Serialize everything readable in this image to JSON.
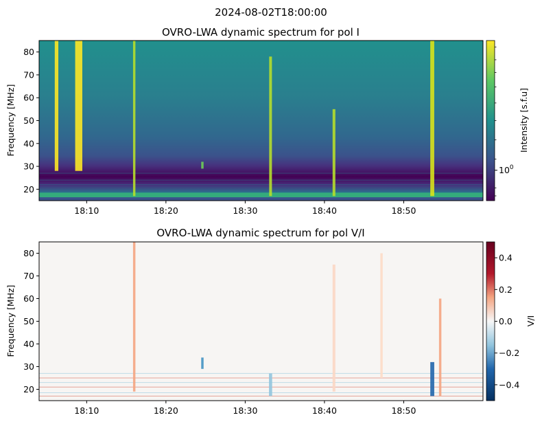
{
  "figure": {
    "suptitle": "2024-08-02T18:00:00"
  },
  "chart_data": [
    {
      "type": "heatmap",
      "title": "OVRO-LWA dynamic spectrum for pol I",
      "xlabel": "",
      "ylabel": "Frequency [MHz]",
      "xlim_minutes": [
        4,
        60
      ],
      "ylim": [
        15,
        85
      ],
      "x_tick_labels": [
        "18:10",
        "18:20",
        "18:30",
        "18:40",
        "18:50"
      ],
      "x_tick_minutes": [
        10,
        20,
        30,
        40,
        50
      ],
      "y_ticks": [
        20,
        30,
        40,
        50,
        60,
        70,
        80
      ],
      "colormap": "viridis",
      "colorbar_label": "Intensity [s.f.u]",
      "colorbar_scale": "log",
      "colorbar_tick_labels": [
        "10^0"
      ],
      "background_band_colors": {
        "high_freq": "#21908d",
        "mid_freq": "#2c728e",
        "low_band": "#40105c",
        "bottom": "#3b528b"
      },
      "bursts": [
        {
          "minute": 6.2,
          "fmin": 28,
          "fmax": 85,
          "width": 0.45,
          "color": "#fde725"
        },
        {
          "minute": 9.0,
          "fmin": 28,
          "fmax": 85,
          "width": 0.9,
          "color": "#fde725"
        },
        {
          "minute": 16.0,
          "fmin": 17,
          "fmax": 85,
          "width": 0.3,
          "color": "#b5de2b"
        },
        {
          "minute": 33.2,
          "fmin": 17,
          "fmax": 78,
          "width": 0.35,
          "color": "#b5de2b"
        },
        {
          "minute": 41.2,
          "fmin": 17,
          "fmax": 55,
          "width": 0.35,
          "color": "#b5de2b"
        },
        {
          "minute": 53.6,
          "fmin": 17,
          "fmax": 85,
          "width": 0.5,
          "color": "#d8e219"
        },
        {
          "minute": 24.6,
          "fmin": 29,
          "fmax": 32,
          "width": 0.3,
          "color": "#6ece58"
        }
      ]
    },
    {
      "type": "heatmap",
      "title": "OVRO-LWA dynamic spectrum for pol V/I",
      "xlabel": "",
      "ylabel": "Frequency [MHz]",
      "xlim_minutes": [
        4,
        60
      ],
      "ylim": [
        15,
        85
      ],
      "x_tick_labels": [
        "18:10",
        "18:20",
        "18:30",
        "18:40",
        "18:50"
      ],
      "x_tick_minutes": [
        10,
        20,
        30,
        40,
        50
      ],
      "y_ticks": [
        20,
        30,
        40,
        50,
        60,
        70,
        80
      ],
      "colormap": "RdBu_r",
      "colorbar_label": "V/I",
      "colorbar_range": [
        -0.5,
        0.5
      ],
      "colorbar_ticks": [
        0.4,
        0.2,
        0.0,
        -0.2,
        -0.4
      ],
      "colorbar_tick_labels": [
        "0.4",
        "0.2",
        "0.0",
        "−0.2",
        "−0.4"
      ],
      "features": [
        {
          "minute": 16.0,
          "fmin": 19,
          "fmax": 85,
          "width": 0.3,
          "color": "#f4a582"
        },
        {
          "minute": 24.6,
          "fmin": 29,
          "fmax": 34,
          "width": 0.3,
          "color": "#4393c3"
        },
        {
          "minute": 33.2,
          "fmin": 17,
          "fmax": 27,
          "width": 0.4,
          "color": "#92c5de"
        },
        {
          "minute": 41.2,
          "fmin": 19,
          "fmax": 75,
          "width": 0.35,
          "color": "#fbd7c4"
        },
        {
          "minute": 47.2,
          "fmin": 25,
          "fmax": 80,
          "width": 0.3,
          "color": "#fddbc7"
        },
        {
          "minute": 53.6,
          "fmin": 17,
          "fmax": 32,
          "width": 0.5,
          "color": "#2166ac"
        },
        {
          "minute": 54.6,
          "fmin": 17,
          "fmax": 60,
          "width": 0.3,
          "color": "#f4a582"
        }
      ]
    }
  ]
}
